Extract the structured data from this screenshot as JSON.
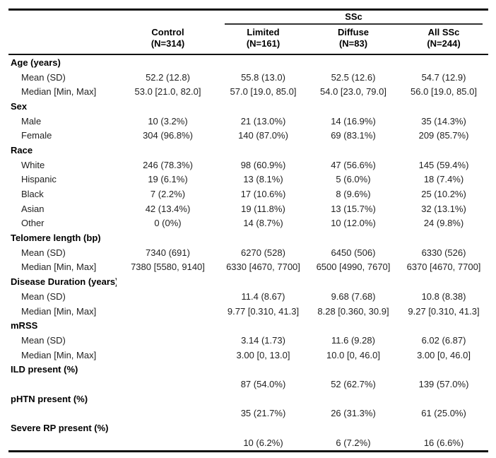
{
  "colors": {
    "background": "#ffffff",
    "text": "#222222",
    "rule": "#111111"
  },
  "table": {
    "group_label": "SSc",
    "columns": [
      {
        "name": "Control",
        "n": "(N=314)"
      },
      {
        "name": "Limited",
        "n": "(N=161)"
      },
      {
        "name": "Diffuse",
        "n": "(N=83)"
      },
      {
        "name": "All SSc",
        "n": "(N=244)"
      }
    ],
    "rows": [
      {
        "type": "section",
        "label": "Age (years)"
      },
      {
        "type": "data",
        "label": "Mean (SD)",
        "values": [
          "52.2 (12.8)",
          "55.8 (13.0)",
          "52.5 (12.6)",
          "54.7 (12.9)"
        ]
      },
      {
        "type": "data",
        "label": "Median [Min, Max]",
        "values": [
          "53.0 [21.0, 82.0]",
          "57.0 [19.0, 85.0]",
          "54.0 [23.0, 79.0]",
          "56.0 [19.0, 85.0]"
        ]
      },
      {
        "type": "section",
        "label": "Sex"
      },
      {
        "type": "data",
        "label": "Male",
        "values": [
          "10 (3.2%)",
          "21 (13.0%)",
          "14 (16.9%)",
          "35 (14.3%)"
        ]
      },
      {
        "type": "data",
        "label": "Female",
        "values": [
          "304 (96.8%)",
          "140 (87.0%)",
          "69 (83.1%)",
          "209 (85.7%)"
        ]
      },
      {
        "type": "section",
        "label": "Race"
      },
      {
        "type": "data",
        "label": "White",
        "values": [
          "246 (78.3%)",
          "98 (60.9%)",
          "47 (56.6%)",
          "145 (59.4%)"
        ]
      },
      {
        "type": "data",
        "label": "Hispanic",
        "values": [
          "19 (6.1%)",
          "13 (8.1%)",
          "5 (6.0%)",
          "18 (7.4%)"
        ]
      },
      {
        "type": "data",
        "label": "Black",
        "values": [
          "7 (2.2%)",
          "17 (10.6%)",
          "8 (9.6%)",
          "25 (10.2%)"
        ]
      },
      {
        "type": "data",
        "label": "Asian",
        "values": [
          "42 (13.4%)",
          "19 (11.8%)",
          "13 (15.7%)",
          "32 (13.1%)"
        ]
      },
      {
        "type": "data",
        "label": "Other",
        "values": [
          "0 (0%)",
          "14 (8.7%)",
          "10 (12.0%)",
          "24 (9.8%)"
        ]
      },
      {
        "type": "section",
        "label": "Telomere length (bp)"
      },
      {
        "type": "data",
        "label": "Mean (SD)",
        "values": [
          "7340 (691)",
          "6270 (528)",
          "6450 (506)",
          "6330 (526)"
        ]
      },
      {
        "type": "data",
        "label": "Median [Min, Max]",
        "values": [
          "7380 [5580, 9140]",
          "6330 [4670, 7700]",
          "6500 [4990, 7670]",
          "6370 [4670, 7700]"
        ]
      },
      {
        "type": "section",
        "label": "Disease Duration (years)"
      },
      {
        "type": "data",
        "label": "Mean (SD)",
        "values": [
          "",
          "11.4 (8.67)",
          "9.68 (7.68)",
          "10.8 (8.38)"
        ]
      },
      {
        "type": "data",
        "label": "Median [Min, Max]",
        "values": [
          "",
          "9.77 [0.310, 41.3]",
          "8.28 [0.360, 30.9]",
          "9.27 [0.310, 41.3]"
        ]
      },
      {
        "type": "section",
        "label": "mRSS"
      },
      {
        "type": "data",
        "label": "Mean (SD)",
        "values": [
          "",
          "3.14 (1.73)",
          "11.6 (9.28)",
          "6.02 (6.87)"
        ]
      },
      {
        "type": "data",
        "label": "Median [Min, Max]",
        "values": [
          "",
          "3.00 [0, 13.0]",
          "10.0 [0, 46.0]",
          "3.00 [0, 46.0]"
        ]
      },
      {
        "type": "section",
        "label": "ILD present (%)"
      },
      {
        "type": "data",
        "label": "",
        "values": [
          "",
          "87 (54.0%)",
          "52 (62.7%)",
          "139 (57.0%)"
        ]
      },
      {
        "type": "section",
        "label": "pHTN present (%)"
      },
      {
        "type": "data",
        "label": "",
        "values": [
          "",
          "35 (21.7%)",
          "26 (31.3%)",
          "61 (25.0%)"
        ]
      },
      {
        "type": "section",
        "label": "Severe RP present (%)"
      },
      {
        "type": "data",
        "label": "",
        "values": [
          "",
          "10 (6.2%)",
          "6 (7.2%)",
          "16 (6.6%)"
        ]
      }
    ]
  }
}
